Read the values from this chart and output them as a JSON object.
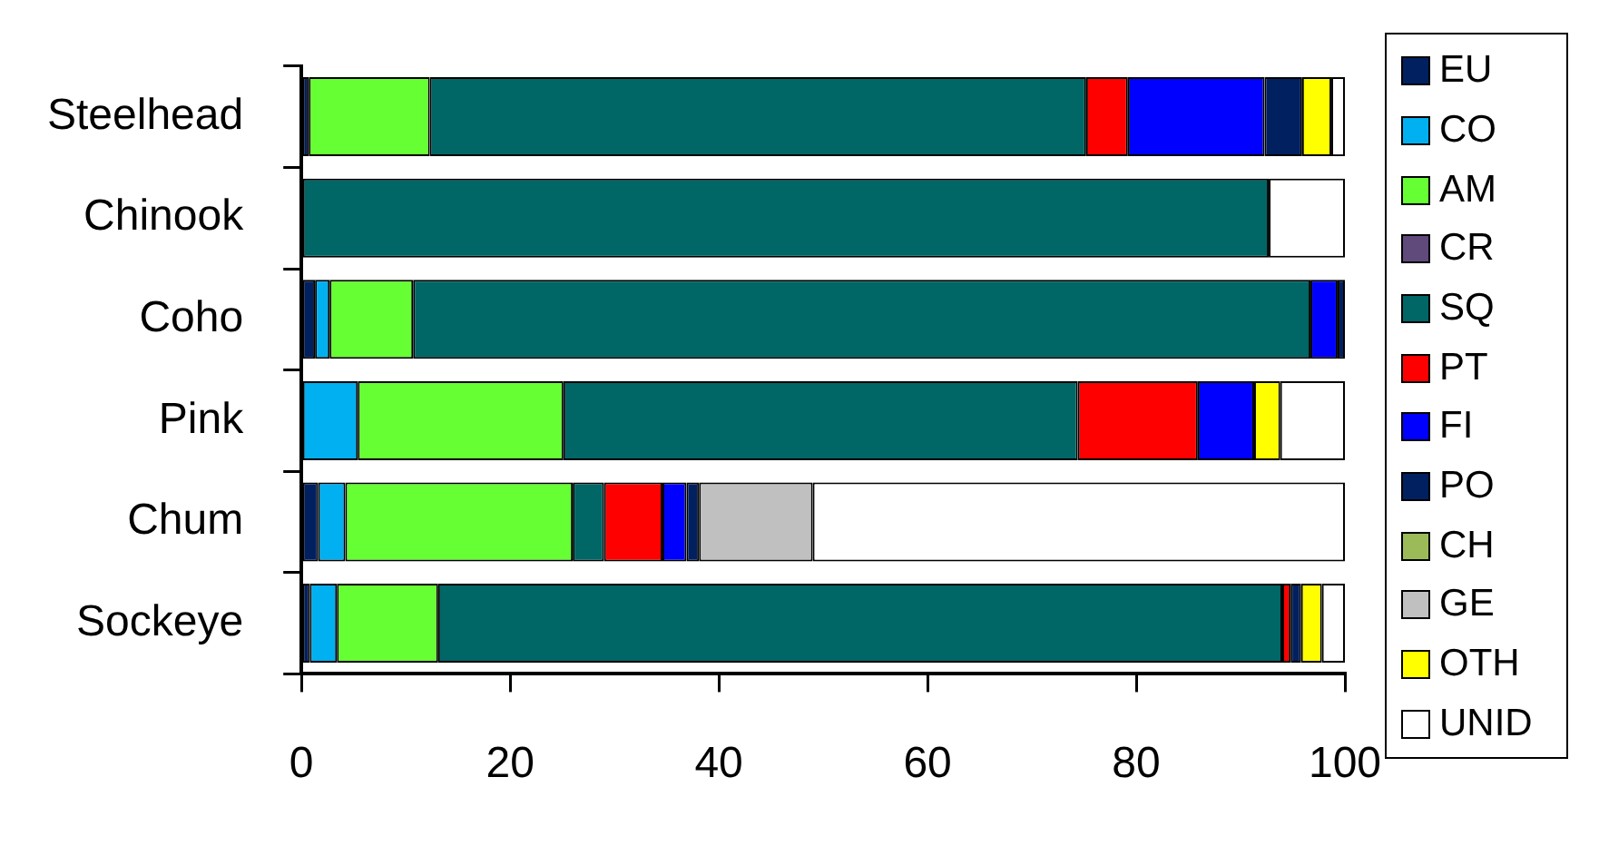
{
  "chart_data": {
    "type": "bar",
    "orientation": "horizontal",
    "stacked": true,
    "categories": [
      "Steelhead",
      "Chinook",
      "Coho",
      "Pink",
      "Chum",
      "Sockeye"
    ],
    "xlim": [
      0,
      100
    ],
    "xticks": [
      0,
      20,
      40,
      60,
      80,
      100
    ],
    "grid": false,
    "legend": "right",
    "series": [
      {
        "name": "EU",
        "color": "#002060",
        "values": [
          0.7,
          null,
          1.3,
          null,
          1.6,
          0.8
        ]
      },
      {
        "name": "CO",
        "color": "#00b0f0",
        "values": [
          null,
          null,
          1.4,
          5.4,
          2.6,
          2.6
        ]
      },
      {
        "name": "AM",
        "color": "#66ff33",
        "values": [
          11.6,
          null,
          8.0,
          19.7,
          21.8,
          9.7
        ]
      },
      {
        "name": "CR",
        "color": "#604a7b",
        "values": [
          null,
          null,
          null,
          null,
          null,
          null
        ]
      },
      {
        "name": "SQ",
        "color": "#006666",
        "values": [
          62.9,
          92.7,
          86.0,
          49.3,
          3.0,
          80.9
        ]
      },
      {
        "name": "PT",
        "color": "#ff0000",
        "values": [
          4.0,
          null,
          null,
          11.5,
          5.6,
          0.8
        ]
      },
      {
        "name": "FI",
        "color": "#0000ff",
        "values": [
          13.1,
          null,
          2.6,
          5.4,
          2.3,
          null
        ]
      },
      {
        "name": "PO",
        "color": "#002060",
        "values": [
          3.6,
          null,
          0.7,
          null,
          1.2,
          1.0
        ]
      },
      {
        "name": "CH",
        "color": "#9bbb59",
        "values": [
          null,
          null,
          null,
          null,
          null,
          null
        ]
      },
      {
        "name": "GE",
        "color": "#c0c0c0",
        "values": [
          null,
          null,
          null,
          null,
          10.9,
          null
        ]
      },
      {
        "name": "OTH",
        "color": "#ffff00",
        "values": [
          2.8,
          null,
          null,
          2.5,
          null,
          2.0
        ]
      },
      {
        "name": "UNID",
        "color": "#ffffff",
        "values": [
          1.3,
          7.3,
          null,
          6.2,
          51.0,
          2.2
        ]
      }
    ]
  }
}
